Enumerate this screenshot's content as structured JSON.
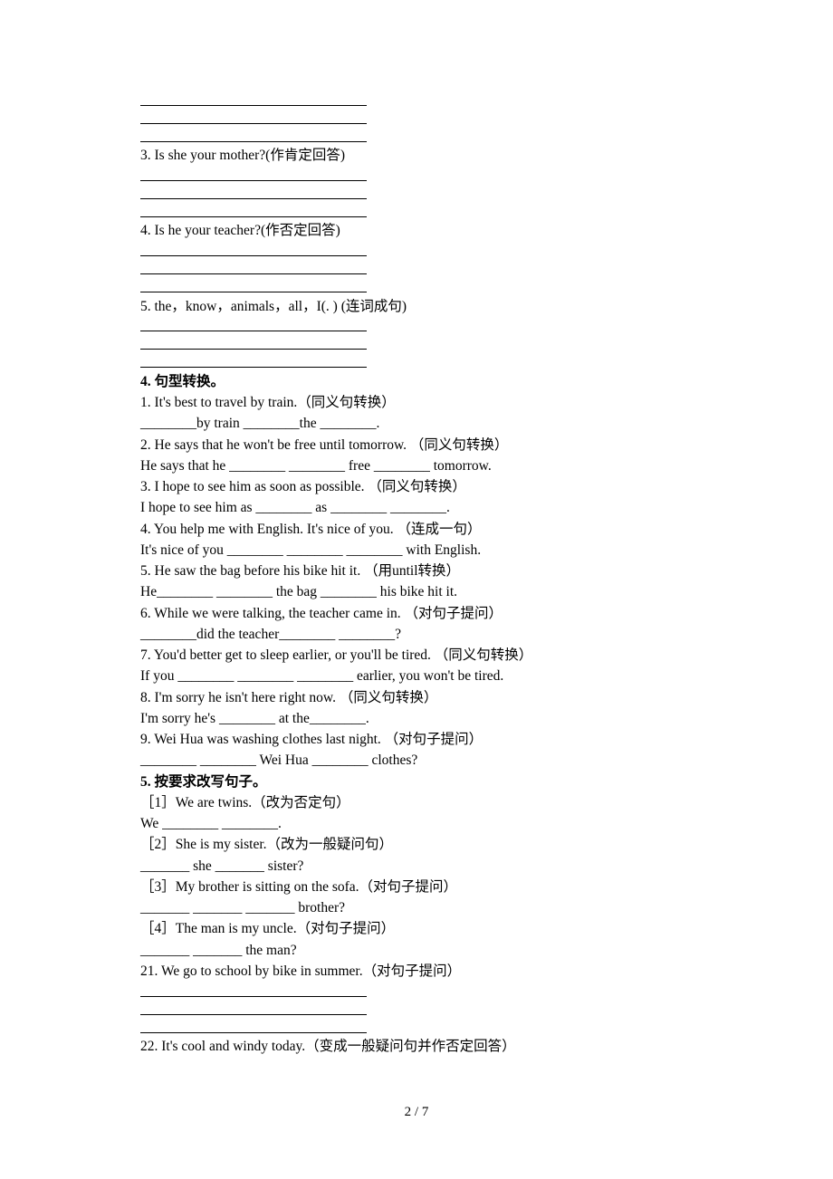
{
  "q3": {
    "text": "3. Is she your mother?(作肯定回答)"
  },
  "q4": {
    "text": "4. Is he your teacher?(作否定回答)"
  },
  "q5": {
    "text": "5. the，know，animals，all，I(. ) (连词成句)"
  },
  "section4": {
    "heading": "4. 句型转换。",
    "items": {
      "1": "1. It's best to travel by train.（同义句转换）",
      "1b": "________by train ________the ________.",
      "2": "2. He says that he won't be free until tomorrow. （同义句转换）",
      "2b": "He says that he ________ ________ free ________ tomorrow.",
      "3": "3. I hope to see him as soon as possible. （同义句转换）",
      "3b": "I hope to see him as ________ as ________ ________.",
      "4": "4. You help me with English. It's nice of you. （连成一句）",
      "4b": "It's nice of you ________ ________ ________ with English.",
      "5": "5. He saw the bag before his bike hit it. （用until转换）",
      "5b": "He________ ________ the bag ________ his bike hit it.",
      "6": "6. While we were talking, the teacher came in. （对句子提问）",
      "6b": "________did the teacher________ ________?",
      "7": "7. You'd better get to sleep earlier, or you'll be tired. （同义句转换）",
      "7b": " If you ________ ________ ________ earlier, you won't be tired.",
      "8": "8. I'm sorry he isn't here right now. （同义句转换）",
      "8b": "I'm sorry he's ________ at the________.",
      "9": "9. Wei Hua was washing clothes last night. （对句子提问）",
      "9b": "________ ________ Wei Hua ________ clothes?"
    }
  },
  "section5": {
    "heading": "5. 按要求改写句子。",
    "items": {
      "1": "［1］We are twins.（改为否定句）",
      "1b": "We ________ ________.",
      "2": "［2］She is my sister.（改为一般疑问句）",
      "2b": "_______ she _______ sister?",
      "3": "［3］My brother is sitting on the sofa.（对句子提问）",
      "3b": "_______ _______ _______ brother?",
      "4": "［4］The man is my uncle.（对句子提问）",
      "4b": "_______ _______ the man?",
      "21": "21. We go to school by bike in summer.（对句子提问）",
      "22": "22. It's cool and windy today.（变成一般疑问句并作否定回答）"
    }
  },
  "footer": "2 / 7"
}
